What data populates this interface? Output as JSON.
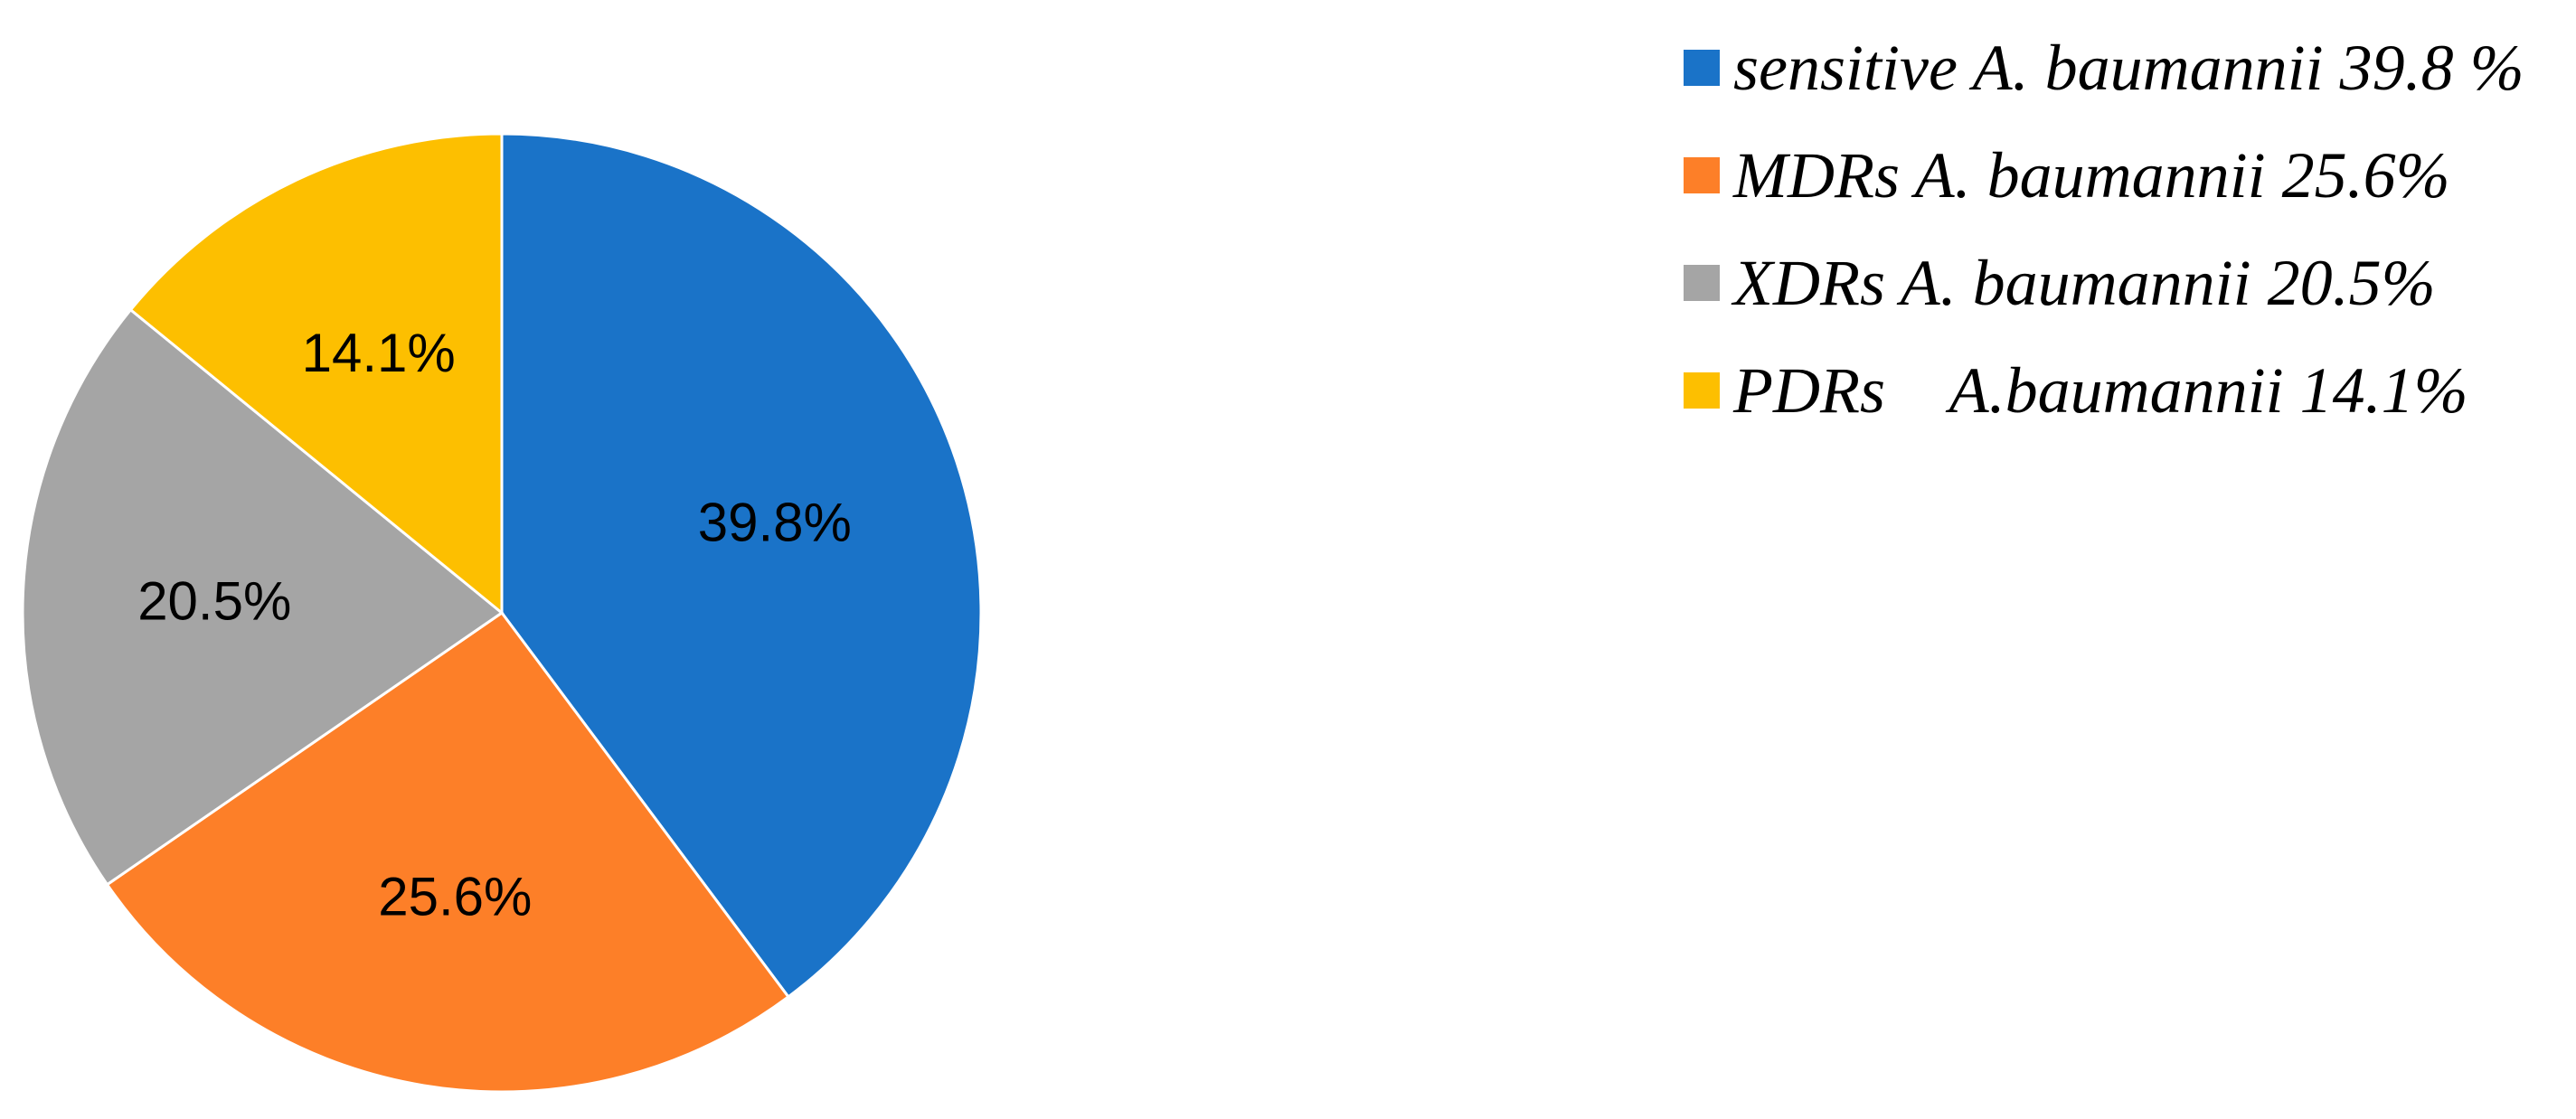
{
  "chart_data": {
    "type": "pie",
    "slices": [
      {
        "label": "sensitive A. baumannii 39.8 %",
        "value": 39.8,
        "data_label": "39.8%",
        "color": "#1a73c8"
      },
      {
        "label": "MDRs A. baumannii 25.6%",
        "value": 25.6,
        "data_label": "25.6%",
        "color": "#fd7f28"
      },
      {
        "label": "XDRs A. baumannii 20.5%",
        "value": 20.5,
        "data_label": "20.5%",
        "color": "#a5a5a5"
      },
      {
        "label": "PDRs    A.baumannii 14.1%",
        "value": 14.1,
        "data_label": "14.1%",
        "color": "#fdbf00"
      }
    ],
    "start_angle": "12 o'clock",
    "direction": "clockwise",
    "legend_position": "top-right"
  }
}
